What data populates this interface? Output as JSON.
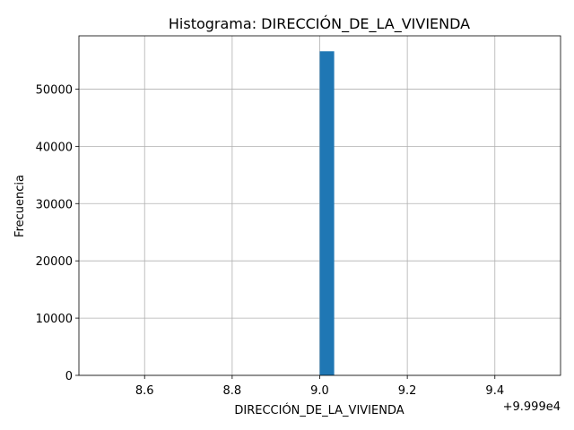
{
  "chart_data": {
    "type": "bar",
    "title": "Histograma: DIRECCIÓN_DE_LA_VIVIENDA",
    "xlabel": "DIRECCIÓN_DE_LA_VIVIENDA",
    "ylabel": "Frecuencia",
    "x_offset_label": "+9.999e4",
    "x_ticks": [
      "8.6",
      "8.8",
      "9.0",
      "9.2",
      "9.4"
    ],
    "y_ticks": [
      "0",
      "10000",
      "20000",
      "30000",
      "40000",
      "50000"
    ],
    "xlim": [
      8.45,
      9.55
    ],
    "ylim": [
      0,
      59300
    ],
    "grid": true,
    "legend": "none",
    "bars": [
      {
        "x_start": 9.0,
        "x_end": 9.033,
        "value": 56600
      }
    ],
    "bar_color": "#1f77b4"
  }
}
